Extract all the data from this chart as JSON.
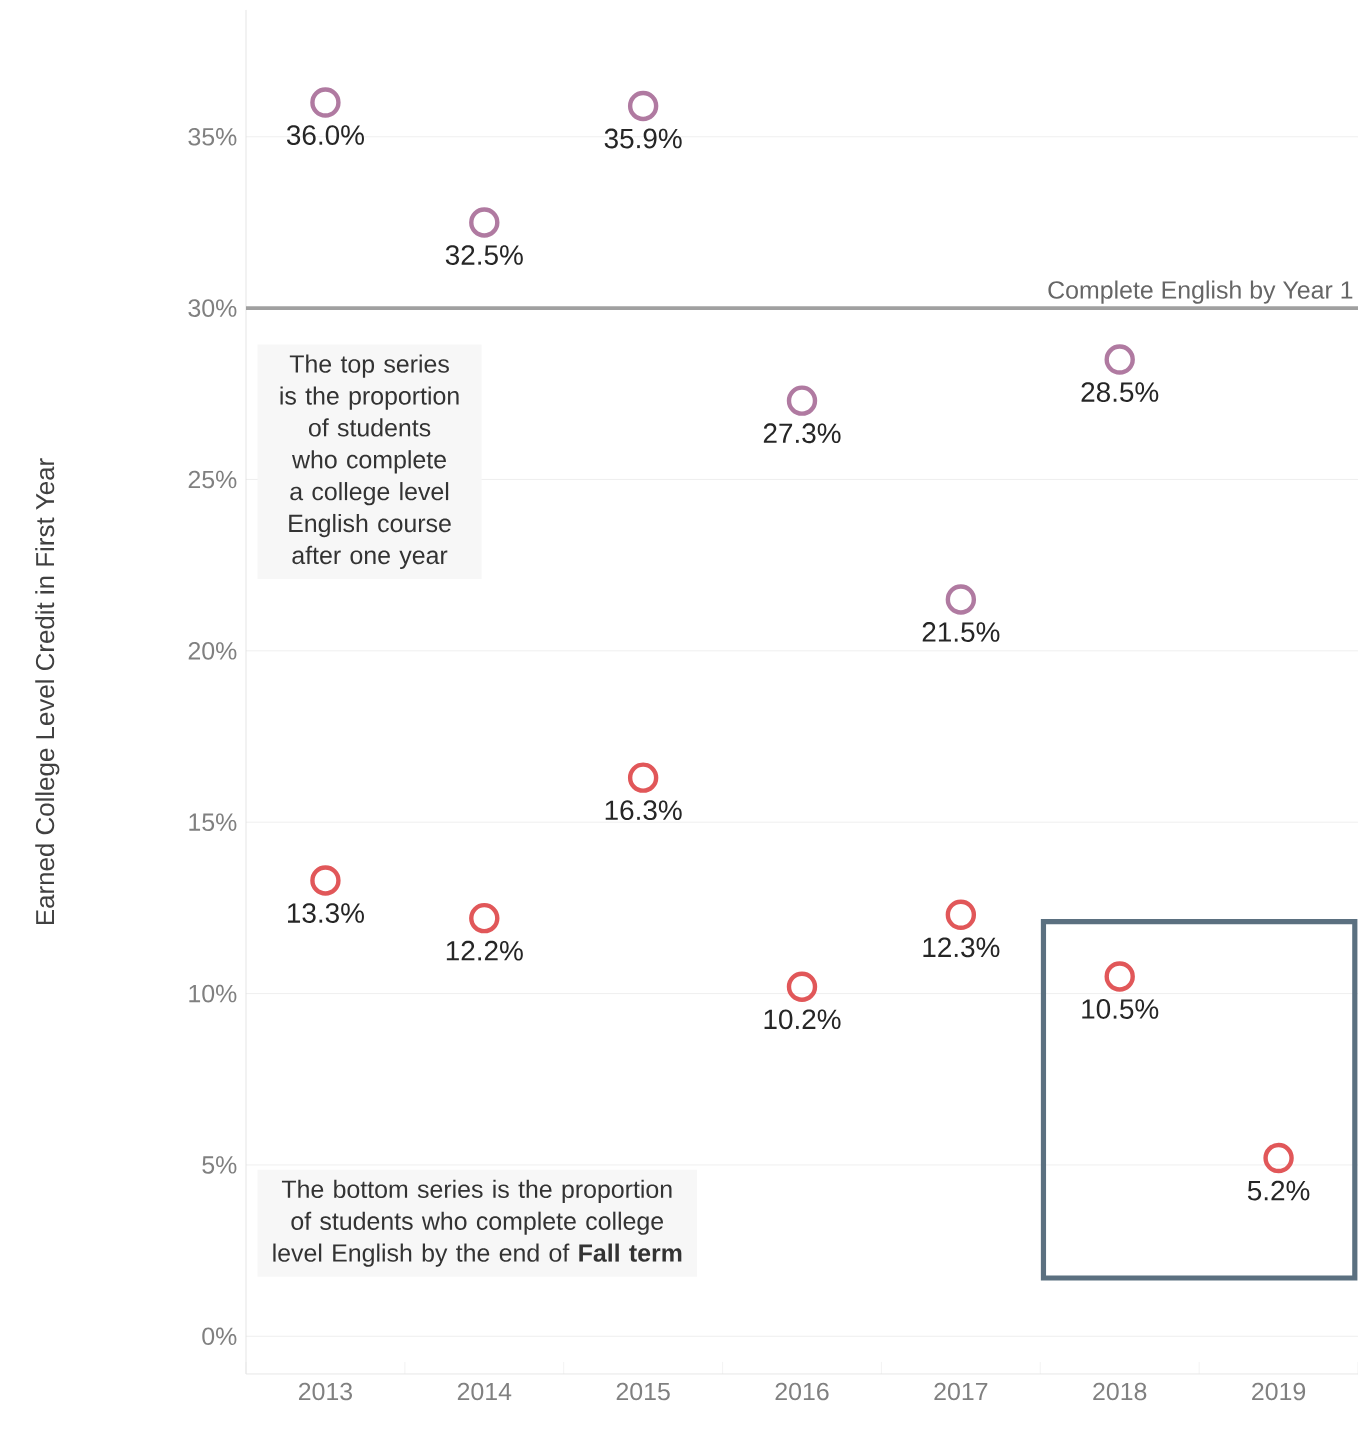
{
  "chart_data": {
    "type": "scatter",
    "ylabel": "Earned College Level Credit in First Year",
    "categories": [
      "2013",
      "2014",
      "2015",
      "2016",
      "2017",
      "2018",
      "2019"
    ],
    "series": [
      {
        "color": "#b07aa1",
        "values": [
          36.0,
          32.5,
          35.9,
          27.3,
          21.5,
          28.5,
          null
        ],
        "value_labels": [
          "36.0%",
          "32.5%",
          "35.9%",
          "27.3%",
          "21.5%",
          "28.5%",
          null
        ]
      },
      {
        "color": "#e15759",
        "values": [
          13.3,
          12.2,
          16.3,
          10.2,
          12.3,
          10.5,
          5.2
        ],
        "value_labels": [
          "13.3%",
          "12.2%",
          "16.3%",
          "10.2%",
          "12.3%",
          "10.5%",
          "5.2%"
        ]
      }
    ],
    "ylim": [
      -1.1,
      38.7
    ],
    "yticks": [
      {
        "value": 0,
        "label": "0%"
      },
      {
        "value": 5,
        "label": "5%"
      },
      {
        "value": 10,
        "label": "10%"
      },
      {
        "value": 15,
        "label": "15%"
      },
      {
        "value": 20,
        "label": "20%"
      },
      {
        "value": 25,
        "label": "25%"
      },
      {
        "value": 30,
        "label": "30%"
      },
      {
        "value": 35,
        "label": "35%"
      }
    ],
    "grid": "y",
    "marker": "circle",
    "ref_lines": [
      {
        "axis": "y",
        "value": 30,
        "label": "Complete English by Year 1",
        "color": "#a0a0a0"
      }
    ],
    "annotations": [
      "The top series is the proportion of students who complete a college level English course after one year",
      "The bottom series is the proportion of students who complete college level English by the end of **Fall term**"
    ]
  }
}
